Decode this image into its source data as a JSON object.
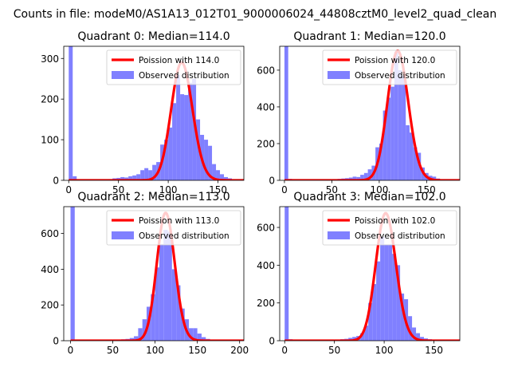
{
  "suptitle": "Counts in file: modeM0/AS1A13_012T01_9000006024_44808cztM0_level2_quad_clean",
  "colors": {
    "hist": "#8080ff",
    "poisson": "#ff0000",
    "axis": "#000000"
  },
  "chart_data": [
    {
      "type": "histogram",
      "title": "Quadrant 0: Median=114.0",
      "median": 114.0,
      "xlim": [
        -5,
        176
      ],
      "ylim": [
        0,
        330
      ],
      "xticks": [
        0,
        50,
        100,
        150
      ],
      "yticks": [
        0,
        100,
        200,
        300
      ],
      "bin_width": 4,
      "bins": [
        {
          "x": 0,
          "y": 330
        },
        {
          "x": 4,
          "y": 10
        },
        {
          "x": 40,
          "y": 3
        },
        {
          "x": 44,
          "y": 5
        },
        {
          "x": 48,
          "y": 6
        },
        {
          "x": 52,
          "y": 8
        },
        {
          "x": 56,
          "y": 7
        },
        {
          "x": 60,
          "y": 10
        },
        {
          "x": 64,
          "y": 12
        },
        {
          "x": 68,
          "y": 15
        },
        {
          "x": 72,
          "y": 25
        },
        {
          "x": 76,
          "y": 30
        },
        {
          "x": 80,
          "y": 25
        },
        {
          "x": 84,
          "y": 38
        },
        {
          "x": 88,
          "y": 45
        },
        {
          "x": 92,
          "y": 88
        },
        {
          "x": 96,
          "y": 100
        },
        {
          "x": 100,
          "y": 130
        },
        {
          "x": 104,
          "y": 190
        },
        {
          "x": 108,
          "y": 260
        },
        {
          "x": 112,
          "y": 212
        },
        {
          "x": 116,
          "y": 210
        },
        {
          "x": 120,
          "y": 240
        },
        {
          "x": 124,
          "y": 250
        },
        {
          "x": 128,
          "y": 150
        },
        {
          "x": 132,
          "y": 112
        },
        {
          "x": 136,
          "y": 100
        },
        {
          "x": 140,
          "y": 85
        },
        {
          "x": 144,
          "y": 40
        },
        {
          "x": 148,
          "y": 25
        },
        {
          "x": 152,
          "y": 15
        },
        {
          "x": 156,
          "y": 8
        },
        {
          "x": 160,
          "y": 5
        }
      ],
      "series": [
        {
          "name": "Poission with 114.0",
          "lambda": 114.0,
          "peak": 290
        },
        {
          "name": "Observed distribution"
        }
      ]
    },
    {
      "type": "histogram",
      "title": "Quadrant 1: Median=120.0",
      "median": 120.0,
      "xlim": [
        -5,
        185
      ],
      "ylim": [
        0,
        730
      ],
      "xticks": [
        0,
        50,
        100,
        150
      ],
      "yticks": [
        0,
        200,
        400,
        600
      ],
      "bin_width": 4,
      "bins": [
        {
          "x": 0,
          "y": 730
        },
        {
          "x": 4,
          "y": 8
        },
        {
          "x": 56,
          "y": 8
        },
        {
          "x": 60,
          "y": 10
        },
        {
          "x": 64,
          "y": 12
        },
        {
          "x": 68,
          "y": 15
        },
        {
          "x": 72,
          "y": 20
        },
        {
          "x": 76,
          "y": 18
        },
        {
          "x": 80,
          "y": 30
        },
        {
          "x": 84,
          "y": 40
        },
        {
          "x": 88,
          "y": 60
        },
        {
          "x": 92,
          "y": 80
        },
        {
          "x": 96,
          "y": 180
        },
        {
          "x": 100,
          "y": 200
        },
        {
          "x": 104,
          "y": 380
        },
        {
          "x": 108,
          "y": 450
        },
        {
          "x": 112,
          "y": 510
        },
        {
          "x": 116,
          "y": 700
        },
        {
          "x": 120,
          "y": 600
        },
        {
          "x": 124,
          "y": 570
        },
        {
          "x": 128,
          "y": 300
        },
        {
          "x": 132,
          "y": 260
        },
        {
          "x": 136,
          "y": 180
        },
        {
          "x": 140,
          "y": 150
        },
        {
          "x": 144,
          "y": 70
        },
        {
          "x": 148,
          "y": 40
        },
        {
          "x": 152,
          "y": 25
        },
        {
          "x": 156,
          "y": 20
        },
        {
          "x": 160,
          "y": 10
        }
      ],
      "series": [
        {
          "name": "Poission with 120.0",
          "lambda": 120.0,
          "peak": 705
        },
        {
          "name": "Observed distribution"
        }
      ]
    },
    {
      "type": "histogram",
      "title": "Quadrant 2: Median=113.0",
      "median": 113.0,
      "xlim": [
        -8,
        205
      ],
      "ylim": [
        0,
        750
      ],
      "xticks": [
        0,
        50,
        100,
        150,
        200
      ],
      "yticks": [
        0,
        200,
        400,
        600
      ],
      "bin_width": 5,
      "bins": [
        {
          "x": 0,
          "y": 750
        },
        {
          "x": 50,
          "y": 5
        },
        {
          "x": 55,
          "y": 6
        },
        {
          "x": 60,
          "y": 8
        },
        {
          "x": 65,
          "y": 10
        },
        {
          "x": 70,
          "y": 15
        },
        {
          "x": 75,
          "y": 25
        },
        {
          "x": 80,
          "y": 70
        },
        {
          "x": 85,
          "y": 120
        },
        {
          "x": 90,
          "y": 190
        },
        {
          "x": 95,
          "y": 260
        },
        {
          "x": 100,
          "y": 410
        },
        {
          "x": 105,
          "y": 540
        },
        {
          "x": 110,
          "y": 620
        },
        {
          "x": 115,
          "y": 610
        },
        {
          "x": 120,
          "y": 400
        },
        {
          "x": 125,
          "y": 310
        },
        {
          "x": 130,
          "y": 180
        },
        {
          "x": 135,
          "y": 120
        },
        {
          "x": 140,
          "y": 70
        },
        {
          "x": 145,
          "y": 70
        },
        {
          "x": 150,
          "y": 40
        },
        {
          "x": 155,
          "y": 20
        },
        {
          "x": 160,
          "y": 10
        },
        {
          "x": 165,
          "y": 5
        }
      ],
      "series": [
        {
          "name": "Poission with 113.0",
          "lambda": 113.0,
          "peak": 715
        },
        {
          "name": "Observed distribution"
        }
      ]
    },
    {
      "type": "histogram",
      "title": "Quadrant 3: Median=102.0",
      "median": 102.0,
      "xlim": [
        -5,
        176
      ],
      "ylim": [
        0,
        710
      ],
      "xticks": [
        0,
        50,
        100,
        150
      ],
      "yticks": [
        0,
        200,
        400,
        600
      ],
      "bin_width": 4,
      "bins": [
        {
          "x": 0,
          "y": 710
        },
        {
          "x": 4,
          "y": 8
        },
        {
          "x": 56,
          "y": 8
        },
        {
          "x": 60,
          "y": 10
        },
        {
          "x": 64,
          "y": 15
        },
        {
          "x": 68,
          "y": 20
        },
        {
          "x": 72,
          "y": 25
        },
        {
          "x": 76,
          "y": 40
        },
        {
          "x": 80,
          "y": 80
        },
        {
          "x": 84,
          "y": 200
        },
        {
          "x": 88,
          "y": 300
        },
        {
          "x": 92,
          "y": 420
        },
        {
          "x": 96,
          "y": 550
        },
        {
          "x": 100,
          "y": 510
        },
        {
          "x": 104,
          "y": 510
        },
        {
          "x": 108,
          "y": 460
        },
        {
          "x": 112,
          "y": 400
        },
        {
          "x": 116,
          "y": 250
        },
        {
          "x": 120,
          "y": 220
        },
        {
          "x": 124,
          "y": 130
        },
        {
          "x": 128,
          "y": 70
        },
        {
          "x": 132,
          "y": 40
        },
        {
          "x": 136,
          "y": 20
        },
        {
          "x": 140,
          "y": 12
        },
        {
          "x": 144,
          "y": 8
        }
      ],
      "series": [
        {
          "name": "Poission with 102.0",
          "lambda": 102.0,
          "peak": 675
        },
        {
          "name": "Observed distribution"
        }
      ]
    }
  ]
}
